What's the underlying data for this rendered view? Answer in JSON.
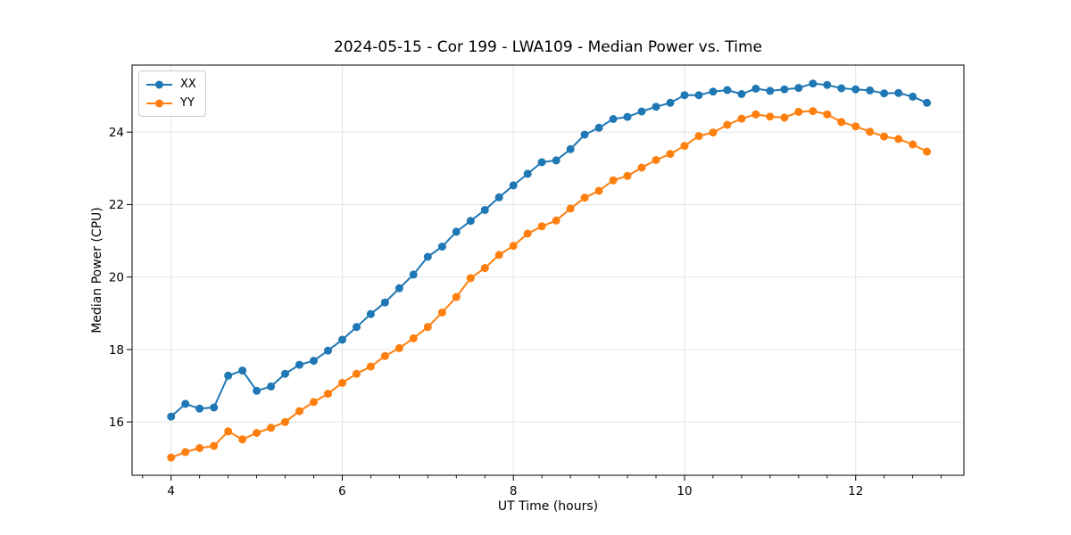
{
  "figure": {
    "background_color": "#ffffff",
    "text_color": "#000000",
    "spine_color": "#000000",
    "grid_color": "#e4e4e4",
    "legend_border_color": "#cccccc"
  },
  "chart_data": {
    "type": "line",
    "title": "2024-05-15 - Cor 199 - LWA109 - Median Power vs. Time",
    "xlabel": "UT Time (hours)",
    "ylabel": "Median Power (CPU)",
    "xlim": [
      3.544,
      13.265
    ],
    "ylim": [
      14.53,
      25.85
    ],
    "grid": true,
    "legend_position": "upper left",
    "marker": "circle",
    "x_major_ticks": [
      4,
      6,
      8,
      10,
      12
    ],
    "x_tick_labels": [
      "4",
      "6",
      "8",
      "10",
      "12"
    ],
    "x_minor_tick_step": 0.33333,
    "y_major_ticks": [
      16,
      18,
      20,
      22,
      24
    ],
    "y_tick_labels": [
      "16",
      "18",
      "20",
      "22",
      "24"
    ],
    "x": [
      4.0,
      4.167,
      4.333,
      4.5,
      4.667,
      4.833,
      5.0,
      5.167,
      5.333,
      5.5,
      5.667,
      5.833,
      6.0,
      6.167,
      6.333,
      6.5,
      6.667,
      6.833,
      7.0,
      7.167,
      7.333,
      7.5,
      7.667,
      7.833,
      8.0,
      8.167,
      8.333,
      8.5,
      8.667,
      8.833,
      9.0,
      9.167,
      9.333,
      9.5,
      9.667,
      9.833,
      10.0,
      10.167,
      10.333,
      10.5,
      10.667,
      10.833,
      11.0,
      11.167,
      11.333,
      11.5,
      11.667,
      11.833,
      12.0,
      12.167,
      12.333,
      12.5,
      12.667,
      12.833
    ],
    "series": [
      {
        "name": "XX",
        "color": "#1f77b4",
        "values": [
          16.15,
          16.5,
          16.37,
          16.4,
          17.28,
          17.42,
          16.86,
          16.98,
          17.33,
          17.58,
          17.69,
          17.97,
          18.27,
          18.62,
          18.98,
          19.3,
          19.69,
          20.07,
          20.56,
          20.84,
          21.25,
          21.55,
          21.85,
          22.2,
          22.53,
          22.85,
          23.17,
          23.22,
          23.53,
          23.93,
          24.12,
          24.36,
          24.42,
          24.57,
          24.7,
          24.81,
          25.02,
          25.02,
          25.12,
          25.16,
          25.05,
          25.2,
          25.14,
          25.18,
          25.22,
          25.34,
          25.3,
          25.21,
          25.18,
          25.15,
          25.07,
          25.08,
          24.98,
          24.81
        ]
      },
      {
        "name": "YY",
        "color": "#ff7f0e",
        "values": [
          15.02,
          15.17,
          15.28,
          15.34,
          15.74,
          15.52,
          15.7,
          15.84,
          16.0,
          16.3,
          16.55,
          16.78,
          17.08,
          17.33,
          17.53,
          17.82,
          18.04,
          18.31,
          18.62,
          19.02,
          19.45,
          19.97,
          20.25,
          20.61,
          20.86,
          21.2,
          21.4,
          21.56,
          21.89,
          22.19,
          22.38,
          22.67,
          22.79,
          23.02,
          23.23,
          23.4,
          23.62,
          23.89,
          23.99,
          24.2,
          24.37,
          24.49,
          24.43,
          24.4,
          24.56,
          24.58,
          24.49,
          24.28,
          24.16,
          24.01,
          23.88,
          23.81,
          23.66,
          23.46
        ]
      }
    ]
  }
}
